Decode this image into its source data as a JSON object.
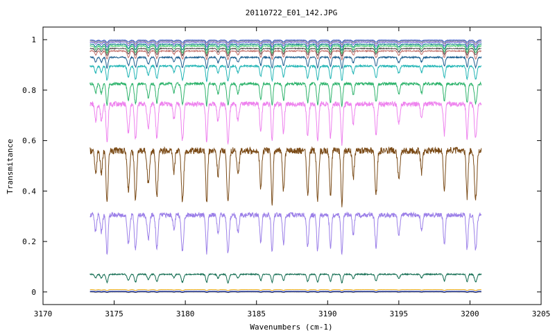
{
  "chart_data": {
    "type": "line",
    "title": "20110722_E01_142.JPG",
    "xlabel": "Wavenumbers (cm-1)",
    "ylabel": "Transmitance",
    "xlim": [
      3170,
      3205
    ],
    "ylim": [
      -0.05,
      1.05
    ],
    "x_ticks": [
      "3170",
      "3175",
      "3180",
      "3185",
      "3190",
      "3195",
      "3200",
      "3205"
    ],
    "y_ticks": [
      "0",
      "0.2",
      "0.4",
      "0.6",
      "0.8",
      "1"
    ],
    "grid": false,
    "x_range_of_data": [
      3173.3,
      3200.8
    ],
    "absorption_lines": [
      3173.7,
      3174.1,
      3174.5,
      3176.0,
      3176.5,
      3177.4,
      3178.0,
      3179.2,
      3179.8,
      3181.5,
      3182.3,
      3183.0,
      3183.7,
      3185.3,
      3186.1,
      3186.9,
      3188.6,
      3189.3,
      3190.2,
      3191.0,
      3191.8,
      3193.4,
      3195.0,
      3196.6,
      3198.2,
      3199.8,
      3200.4
    ],
    "series": [
      {
        "color": "#1a1a2e",
        "baseline": 0.0,
        "depth": 0.002
      },
      {
        "color": "#2a4bd7",
        "baseline": 0.003,
        "depth": 0.003
      },
      {
        "color": "#e6a817",
        "baseline": 0.009,
        "depth": 0.004
      },
      {
        "color": "#0f6b4f",
        "baseline": 0.07,
        "depth": 0.035
      },
      {
        "color": "#9b7fe8",
        "baseline": 0.305,
        "depth": 0.16
      },
      {
        "color": "#7a4a16",
        "baseline": 0.56,
        "depth": 0.22
      },
      {
        "color": "#ee82ee",
        "baseline": 0.745,
        "depth": 0.16
      },
      {
        "color": "#2db36b",
        "baseline": 0.825,
        "depth": 0.09
      },
      {
        "color": "#21b5b5",
        "baseline": 0.895,
        "depth": 0.06
      },
      {
        "color": "#1b5e8f",
        "baseline": 0.93,
        "depth": 0.045
      },
      {
        "color": "#c0706a",
        "baseline": 0.955,
        "depth": 0.035
      },
      {
        "color": "#555555",
        "baseline": 0.965,
        "depth": 0.03
      },
      {
        "color": "#3fc96a",
        "baseline": 0.975,
        "depth": 0.03
      },
      {
        "color": "#0a7d8c",
        "baseline": 0.982,
        "depth": 0.025
      },
      {
        "color": "#6b5bd1",
        "baseline": 0.99,
        "depth": 0.02
      },
      {
        "color": "#888888",
        "baseline": 0.995,
        "depth": 0.015
      },
      {
        "color": "#3355cc",
        "baseline": 0.998,
        "depth": 0.01
      }
    ]
  }
}
